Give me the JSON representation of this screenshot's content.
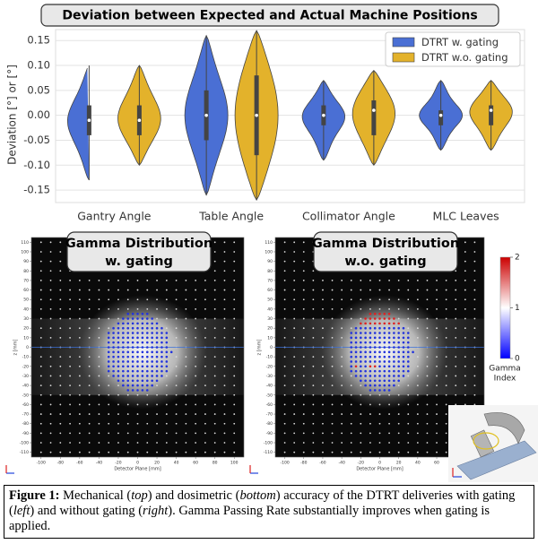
{
  "chart_data": {
    "type": "violin",
    "title": "Deviation between Expected and Actual Machine Positions",
    "ylabel": "Deviation [°] or [°]",
    "categories": [
      "Gantry Angle",
      "Table Angle",
      "Collimator Angle",
      "MLC Leaves"
    ],
    "series": [
      {
        "name": "DTRT w. gating",
        "color": "#4a6fd4",
        "min": [
          -0.13,
          -0.16,
          -0.09,
          -0.07
        ],
        "q1": [
          -0.04,
          -0.05,
          -0.02,
          -0.02
        ],
        "median": [
          -0.01,
          0.0,
          0.0,
          0.0
        ],
        "q3": [
          0.02,
          0.05,
          0.02,
          0.01
        ],
        "max": [
          0.1,
          0.16,
          0.07,
          0.07
        ]
      },
      {
        "name": "DTRT w.o. gating",
        "color": "#e3b22b",
        "min": [
          -0.1,
          -0.17,
          -0.1,
          -0.07
        ],
        "q1": [
          -0.04,
          -0.08,
          -0.04,
          -0.02
        ],
        "median": [
          -0.01,
          0.0,
          0.01,
          0.01
        ],
        "q3": [
          0.02,
          0.08,
          0.03,
          0.02
        ],
        "max": [
          0.1,
          0.17,
          0.09,
          0.07
        ]
      }
    ],
    "ylim": [
      -0.175,
      0.172
    ],
    "yticks": [
      {
        "value": -0.15,
        "label": "-0.15"
      },
      {
        "value": -0.1,
        "label": "-0.10"
      },
      {
        "value": -0.05,
        "label": "-0.05"
      },
      {
        "value": 0,
        "label": "0.00"
      },
      {
        "value": 0.05,
        "label": "0.05"
      },
      {
        "value": 0.1,
        "label": "0.10"
      },
      {
        "value": 0.15,
        "label": "0.15"
      }
    ],
    "grid": true,
    "legend": "upper right"
  },
  "gamma_maps": [
    {
      "title": "Gamma Distribution",
      "subtitle": "w. gating",
      "xlabel": "Detector Plane [mm]",
      "ylabel": "z [mm]",
      "xlim": [
        -110,
        110
      ],
      "ylim": [
        -115,
        115
      ],
      "xticks": [
        -100,
        -80,
        -60,
        -40,
        -20,
        0,
        20,
        40,
        60,
        80,
        100
      ],
      "yticks": [
        110,
        100,
        90,
        80,
        70,
        60,
        50,
        40,
        30,
        20,
        10,
        0,
        -10,
        -20,
        -30,
        -40,
        -50,
        -60,
        -70,
        -80,
        -90,
        -100,
        -110
      ]
    },
    {
      "title": "Gamma Distribution",
      "subtitle": "w.o. gating",
      "xlabel": "Detector Plane [mm]",
      "ylabel": "z [mm]",
      "xlim": [
        -110,
        110
      ],
      "ylim": [
        -115,
        115
      ],
      "xticks": [
        -100,
        -80,
        -60,
        -40,
        -20,
        0,
        20,
        40,
        60
      ],
      "yticks": [
        110,
        100,
        90,
        80,
        70,
        60,
        50,
        40,
        30,
        20,
        10,
        0,
        -10,
        -20,
        -30,
        -40,
        -50,
        -60,
        -70,
        -80,
        -90,
        -100,
        -110
      ]
    }
  ],
  "colorbar": {
    "ticks": [
      2,
      1,
      0
    ],
    "lim": [
      0,
      2
    ],
    "label_lines": [
      "Gamma",
      "Index"
    ]
  },
  "caption": {
    "label": "Figure 1:",
    "parts": [
      " Mechanical (",
      "top",
      ") and dosimetric (",
      "bottom",
      ") accuracy of the DTRT deliveries with gating (",
      "left",
      ") and without gating (",
      "right",
      "). Gamma Passing Rate substantially improves when gating is applied."
    ]
  }
}
